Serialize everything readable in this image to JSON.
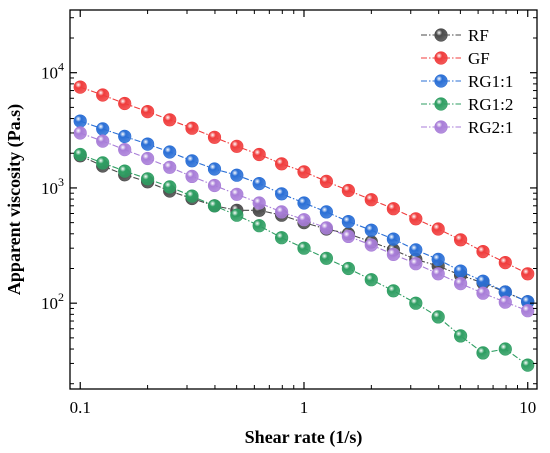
{
  "chart_data": {
    "type": "scatter",
    "title": "",
    "xlabel": "Shear rate (1/s)",
    "ylabel": "Apparent viscosity (Pa.s)",
    "xscale": "log",
    "yscale": "log",
    "xlim": [
      0.09,
      11
    ],
    "ylim": [
      18,
      35000
    ],
    "legend_position": "top-right",
    "x_ticks": [
      {
        "value": 0.1,
        "label": "0.1"
      },
      {
        "value": 1,
        "label": "1"
      },
      {
        "value": 10,
        "label": "10"
      }
    ],
    "y_ticks": [
      {
        "value": 100,
        "base": "10",
        "exp": "2"
      },
      {
        "value": 1000,
        "base": "10",
        "exp": "3"
      },
      {
        "value": 10000,
        "base": "10",
        "exp": "4"
      }
    ],
    "x": [
      0.1,
      0.126,
      0.158,
      0.2,
      0.251,
      0.316,
      0.398,
      0.501,
      0.631,
      0.794,
      1,
      1.26,
      1.58,
      2,
      2.51,
      3.16,
      3.98,
      5.01,
      6.31,
      7.94,
      10
    ],
    "series": [
      {
        "name": "RF",
        "color": "#4a4a4a",
        "values": [
          1900,
          1550,
          1300,
          1130,
          940,
          810,
          700,
          640,
          640,
          580,
          500,
          440,
          400,
          340,
          290,
          240,
          210,
          175,
          150,
          125,
          103
        ]
      },
      {
        "name": "GF",
        "color": "#f03c3c",
        "values": [
          7500,
          6400,
          5400,
          4600,
          3900,
          3300,
          2750,
          2300,
          1950,
          1620,
          1380,
          1140,
          950,
          790,
          660,
          540,
          440,
          355,
          280,
          225,
          180
        ]
      },
      {
        "name": "RG1:1",
        "color": "#2a6fd6",
        "values": [
          3800,
          3250,
          2800,
          2400,
          2050,
          1720,
          1460,
          1290,
          1090,
          890,
          740,
          620,
          510,
          430,
          360,
          290,
          240,
          190,
          155,
          125,
          103
        ]
      },
      {
        "name": "RG1:2",
        "color": "#2e9e62",
        "values": [
          1950,
          1650,
          1400,
          1200,
          1020,
          850,
          700,
          580,
          470,
          370,
          300,
          245,
          200,
          160,
          128,
          100,
          76,
          52,
          37,
          40,
          29
        ]
      },
      {
        "name": "RG2:1",
        "color": "#a87dd8",
        "values": [
          3000,
          2550,
          2150,
          1800,
          1510,
          1260,
          1050,
          880,
          740,
          620,
          530,
          450,
          380,
          320,
          265,
          220,
          180,
          148,
          122,
          102,
          86
        ]
      }
    ]
  }
}
